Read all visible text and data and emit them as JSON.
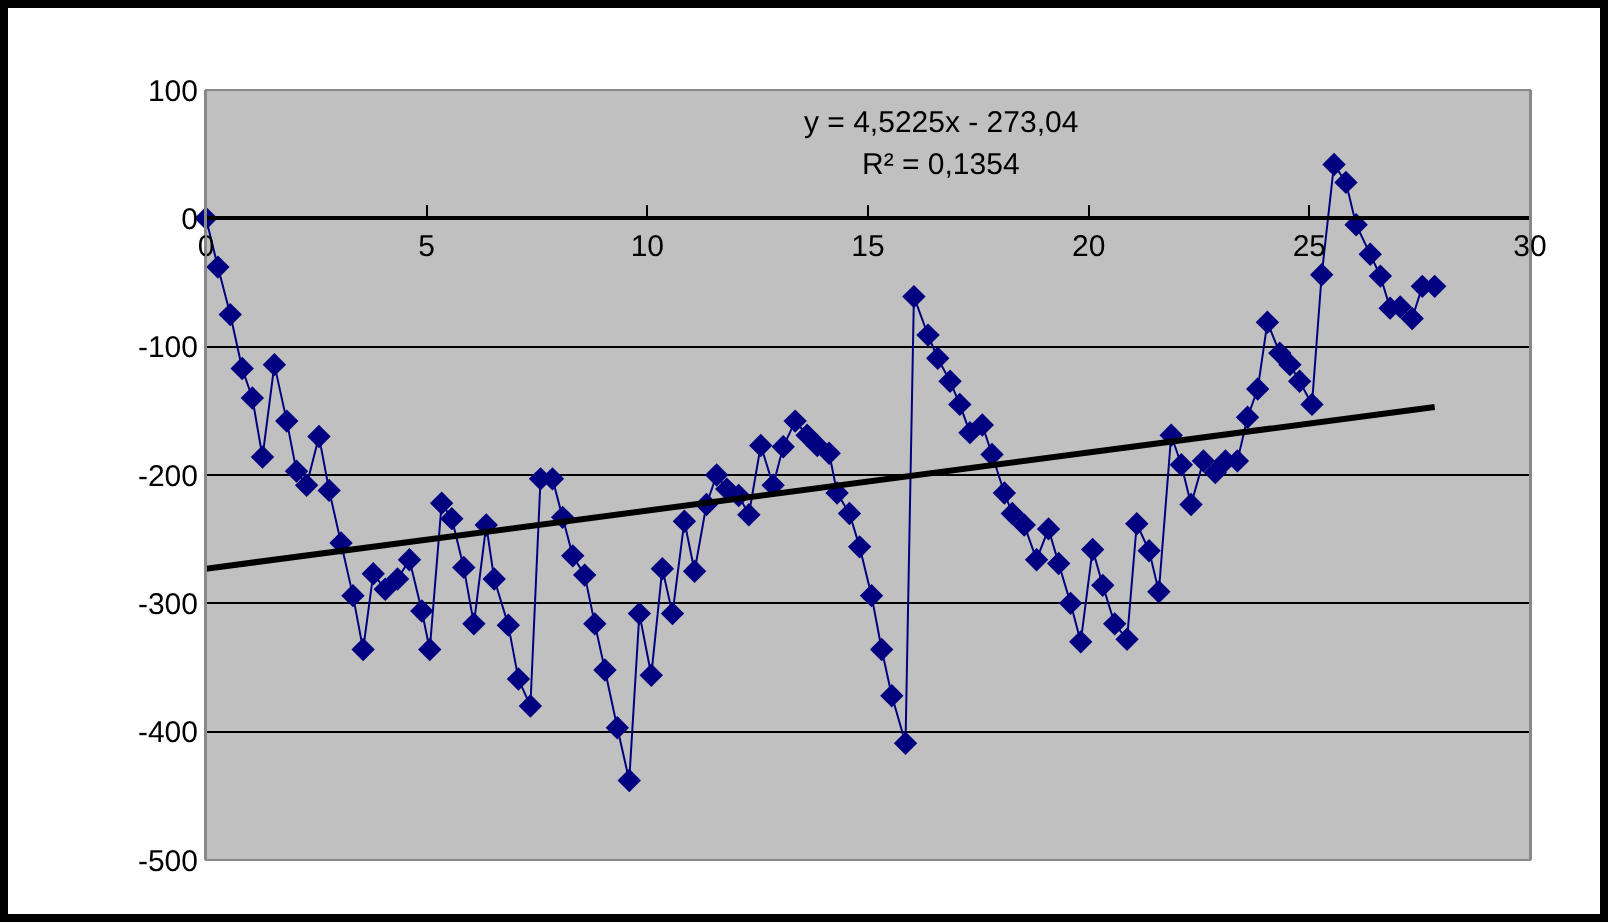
{
  "chart_data": {
    "type": "line",
    "xlim": [
      0,
      30
    ],
    "xticks": [
      0,
      5,
      10,
      15,
      20,
      25,
      30
    ],
    "ylim": [
      -500,
      100
    ],
    "yticks": [
      -500,
      -400,
      -300,
      -200,
      -100,
      0,
      100
    ],
    "grid": "y",
    "marker": "diamond",
    "annotations": [
      "y = 4,5225x - 273,04",
      "R² = 0,1354"
    ],
    "series": [
      {
        "color": "#000080",
        "x": [
          0,
          0.27,
          0.55,
          0.82,
          1.05,
          1.28,
          1.55,
          1.83,
          2.05,
          2.28,
          2.56,
          2.79,
          3.06,
          3.33,
          3.56,
          3.79,
          4.06,
          4.34,
          4.61,
          4.89,
          5.07,
          5.34,
          5.57,
          5.84,
          6.07,
          6.35,
          6.53,
          6.85,
          7.08,
          7.35,
          7.58,
          7.85,
          8.08,
          8.31,
          8.58,
          8.81,
          9.04,
          9.32,
          9.59,
          9.82,
          10.09,
          10.34,
          10.57,
          10.84,
          11.07,
          11.34,
          11.57,
          11.8,
          12.07,
          12.3,
          12.57,
          12.85,
          13.08,
          13.35,
          13.62,
          13.85,
          14.12,
          14.3,
          14.58,
          14.81,
          15.08,
          15.31,
          15.54,
          15.85,
          16.04,
          16.36,
          16.58,
          16.86,
          17.08,
          17.31,
          17.59,
          17.81,
          18.09,
          18.27,
          18.54,
          18.82,
          19.09,
          19.32,
          19.59,
          19.82,
          20.09,
          20.32,
          20.59,
          20.87,
          21.09,
          21.37,
          21.59,
          21.87,
          22.1,
          22.32,
          22.6,
          22.87,
          23.1,
          23.37,
          23.6,
          23.83,
          24.05,
          24.33,
          24.56,
          24.78,
          25.06,
          25.28,
          25.56,
          25.83,
          26.06,
          26.38,
          26.61,
          26.83,
          27.06,
          27.33,
          27.56,
          27.84
        ],
        "values": [
          0,
          -38,
          -75,
          -117,
          -140,
          -186,
          -114,
          -158,
          -197,
          -208,
          -170,
          -212,
          -253,
          -294,
          -336,
          -277,
          -289,
          -281,
          -266,
          -306,
          -336,
          -222,
          -234,
          -272,
          -316,
          -239,
          -281,
          -317,
          -359,
          -380,
          -203,
          -203,
          -233,
          -263,
          -278,
          -316,
          -352,
          -397,
          -438,
          -308,
          -356,
          -273,
          -308,
          -236,
          -275,
          -223,
          -200,
          -211,
          -216,
          -231,
          -177,
          -208,
          -178,
          -158,
          -169,
          -177,
          -183,
          -214,
          -230,
          -256,
          -294,
          -336,
          -372,
          -409,
          -61,
          -91,
          -109,
          -127,
          -145,
          -167,
          -161,
          -184,
          -214,
          -230,
          -239,
          -266,
          -242,
          -269,
          -300,
          -330,
          -258,
          -286,
          -316,
          -328,
          -238,
          -259,
          -291,
          -169,
          -192,
          -223,
          -189,
          -198,
          -189,
          -189,
          -155,
          -133,
          -81,
          -105,
          -114,
          -127,
          -145,
          -44,
          42,
          28,
          -5,
          -28,
          -45,
          -70,
          -69,
          -78,
          -53,
          -53
        ]
      },
      {
        "type": "line",
        "color": "#000000",
        "marker": "none",
        "x": [
          0,
          27.84
        ],
        "values": [
          -273,
          -147
        ]
      }
    ]
  }
}
